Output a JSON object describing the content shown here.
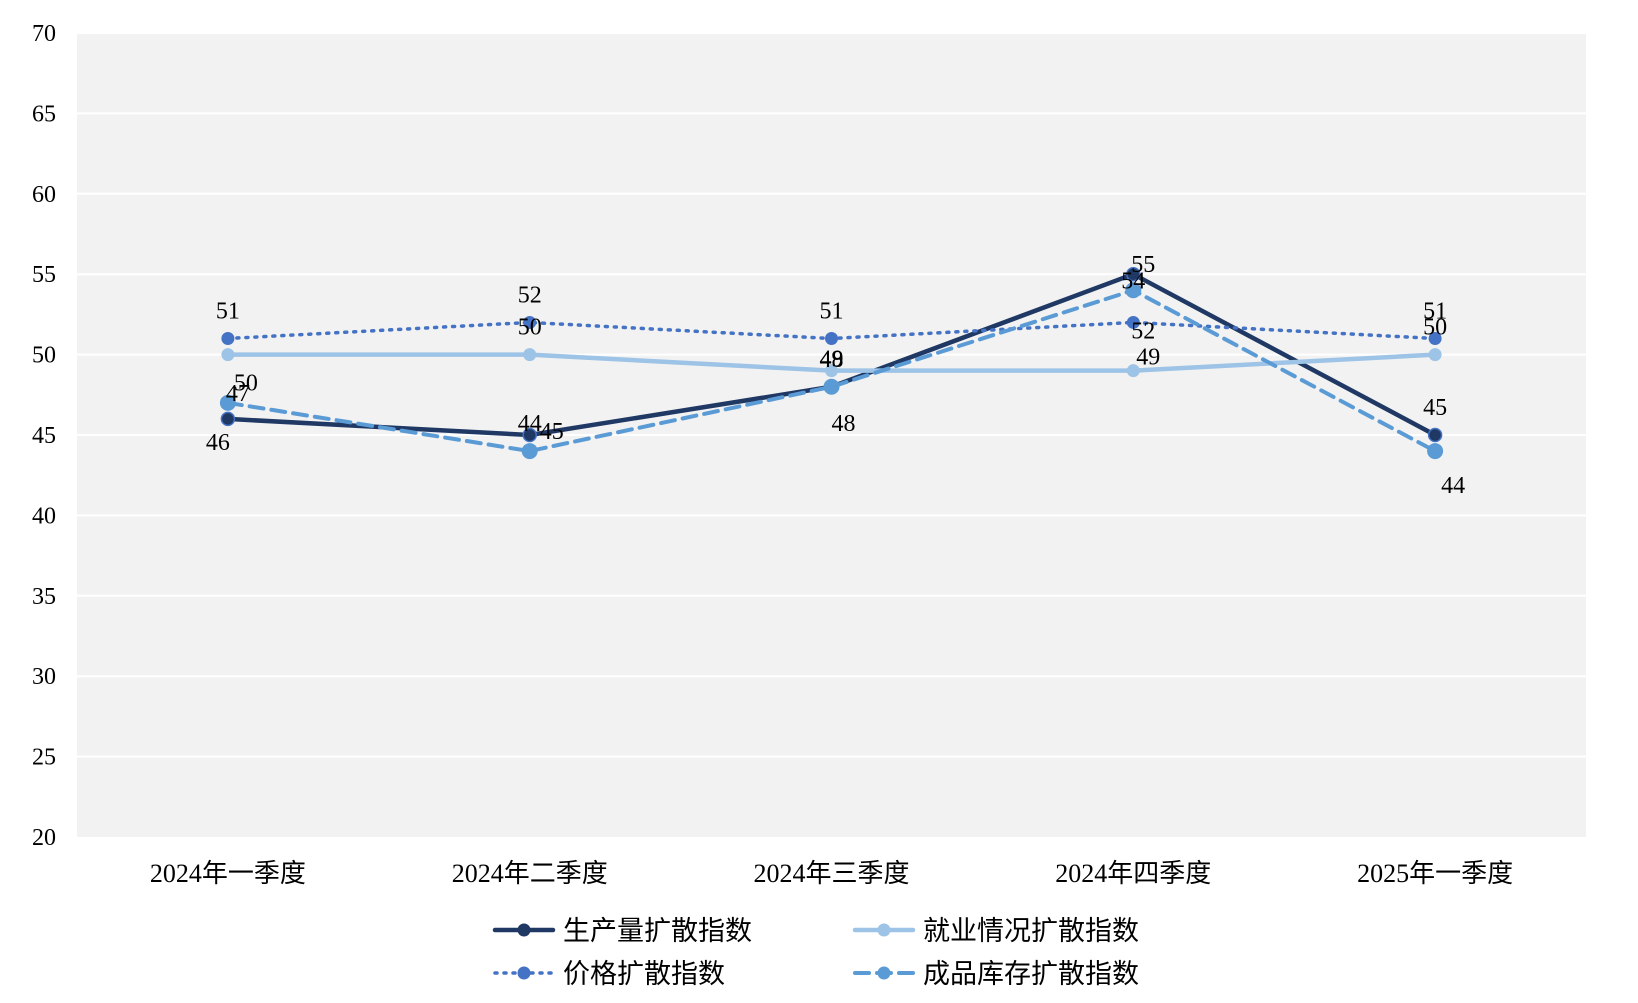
{
  "chart_data": {
    "type": "line",
    "categories": [
      "2024年一季度",
      "2024年二季度",
      "2024年三季度",
      "2024年四季度",
      "2025年一季度"
    ],
    "ylim": [
      20,
      70
    ],
    "yticks": [
      20,
      25,
      30,
      35,
      40,
      45,
      50,
      55,
      60,
      65,
      70
    ],
    "grid": "horizontal",
    "legend_position": "bottom",
    "series": [
      {
        "name": "生产量扩散指数",
        "values": [
          46,
          45,
          48,
          55,
          45
        ],
        "color": "#1f3864",
        "style": "solid"
      },
      {
        "name": "就业情况扩散指数",
        "values": [
          50,
          50,
          49,
          49,
          50
        ],
        "color": "#9dc3e6",
        "style": "solid"
      },
      {
        "name": "价格扩散指数",
        "values": [
          51,
          52,
          51,
          52,
          51
        ],
        "color": "#4472c4",
        "style": "dotted"
      },
      {
        "name": "成品库存扩散指数",
        "values": [
          47,
          44,
          48,
          54,
          44
        ],
        "color": "#5b9bd5",
        "style": "dashed"
      }
    ],
    "data_labels": [
      [
        "46",
        "45",
        "48",
        "55",
        "45"
      ],
      [
        "50",
        "50",
        "49",
        "49",
        "50"
      ],
      [
        "51",
        "52",
        "51",
        "52",
        "51"
      ],
      [
        "47",
        "44",
        "48",
        "54",
        "44"
      ]
    ]
  }
}
